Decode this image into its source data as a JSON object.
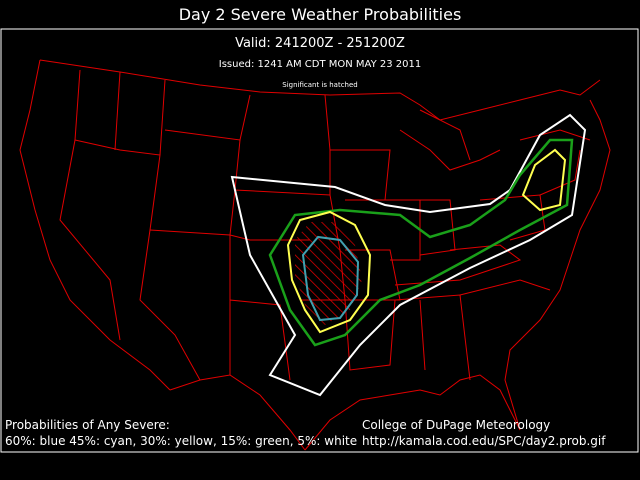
{
  "header": {
    "title": "Day 2 Severe Weather Probabilities",
    "valid": "Valid: 241200Z - 251200Z",
    "issued": "Issued: 1241 AM CDT MON MAY 23 2011",
    "note": "Significant is hatched"
  },
  "legend": {
    "heading": "Probabilities of Any Severe:",
    "key": "60%: blue 45%: cyan, 30%: yellow, 15%: green, 5%: white"
  },
  "credit": {
    "source": "College of DuPage Meteorology",
    "url": "http://kamala.cod.edu/SPC/day2.prob.gif"
  }
}
